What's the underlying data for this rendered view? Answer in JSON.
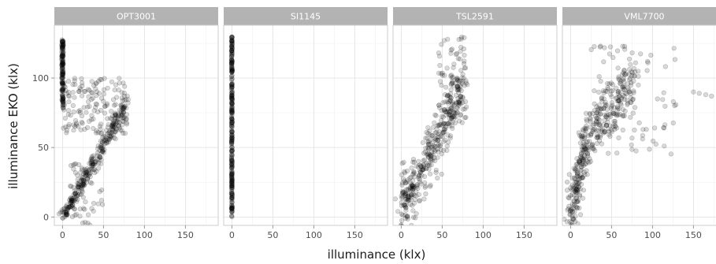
{
  "chart_data": {
    "type": "scatter",
    "title": "",
    "xlabel": "illuminance (klx)",
    "ylabel": "illuminance EKO (klx)",
    "xlim": [
      -10,
      190
    ],
    "ylim": [
      -6,
      138
    ],
    "x_ticks": [
      0,
      50,
      100,
      150
    ],
    "y_ticks": [
      0,
      50,
      100
    ],
    "grid": true,
    "legend": "none",
    "point_color": "#000000",
    "point_alpha": 0.15,
    "strip_color": "#b3b3b3",
    "panels": [
      {
        "name": "OPT3001",
        "components": [
          {
            "kind": "trend",
            "x0": 0,
            "y0": 0,
            "x1": 78,
            "y1": 84,
            "xjit": 2,
            "yjit": 2.5,
            "n": 140
          },
          {
            "kind": "trend",
            "x0": 0,
            "y0": 0,
            "x1": 78,
            "y1": 76,
            "xjit": 2,
            "yjit": 2.5,
            "n": 140
          },
          {
            "kind": "box",
            "x": [
              -1,
              1
            ],
            "y": [
              78,
              128
            ],
            "n": 150
          },
          {
            "kind": "box",
            "x": [
              0,
              80
            ],
            "y": [
              60,
              100
            ],
            "n": 150
          },
          {
            "kind": "box",
            "x": [
              8,
              50
            ],
            "y": [
              -6,
              40
            ],
            "n": 60
          }
        ]
      },
      {
        "name": "SI1145",
        "components": [
          {
            "kind": "box",
            "x": [
              -0.5,
              0.5
            ],
            "y": [
              0,
              130
            ],
            "n": 320
          }
        ]
      },
      {
        "name": "TSL2591",
        "components": [
          {
            "kind": "trend",
            "x0": 0,
            "y0": 0,
            "x1": 75,
            "y1": 95,
            "xjit": 4,
            "yjit": 9,
            "n": 340
          },
          {
            "kind": "box",
            "x": [
              45,
              80
            ],
            "y": [
              70,
              130
            ],
            "n": 80
          },
          {
            "kind": "box",
            "x": [
              0,
              15
            ],
            "y": [
              10,
              40
            ],
            "n": 40
          }
        ]
      },
      {
        "name": "VML7700",
        "components": [
          {
            "kind": "trend",
            "x0": 0,
            "y0": 0,
            "x1": 20,
            "y1": 55,
            "xjit": 3,
            "yjit": 9,
            "n": 180
          },
          {
            "kind": "trend",
            "x0": 20,
            "y0": 55,
            "x1": 75,
            "y1": 98,
            "xjit": 6,
            "yjit": 9,
            "n": 220
          },
          {
            "kind": "box",
            "x": [
              20,
              130
            ],
            "y": [
              45,
              125
            ],
            "n": 80
          },
          {
            "kind": "points",
            "x": [
              150,
              157,
              165,
              172,
              190
            ],
            "y": [
              90,
              89,
              88,
              87,
              92
            ]
          }
        ]
      }
    ]
  }
}
